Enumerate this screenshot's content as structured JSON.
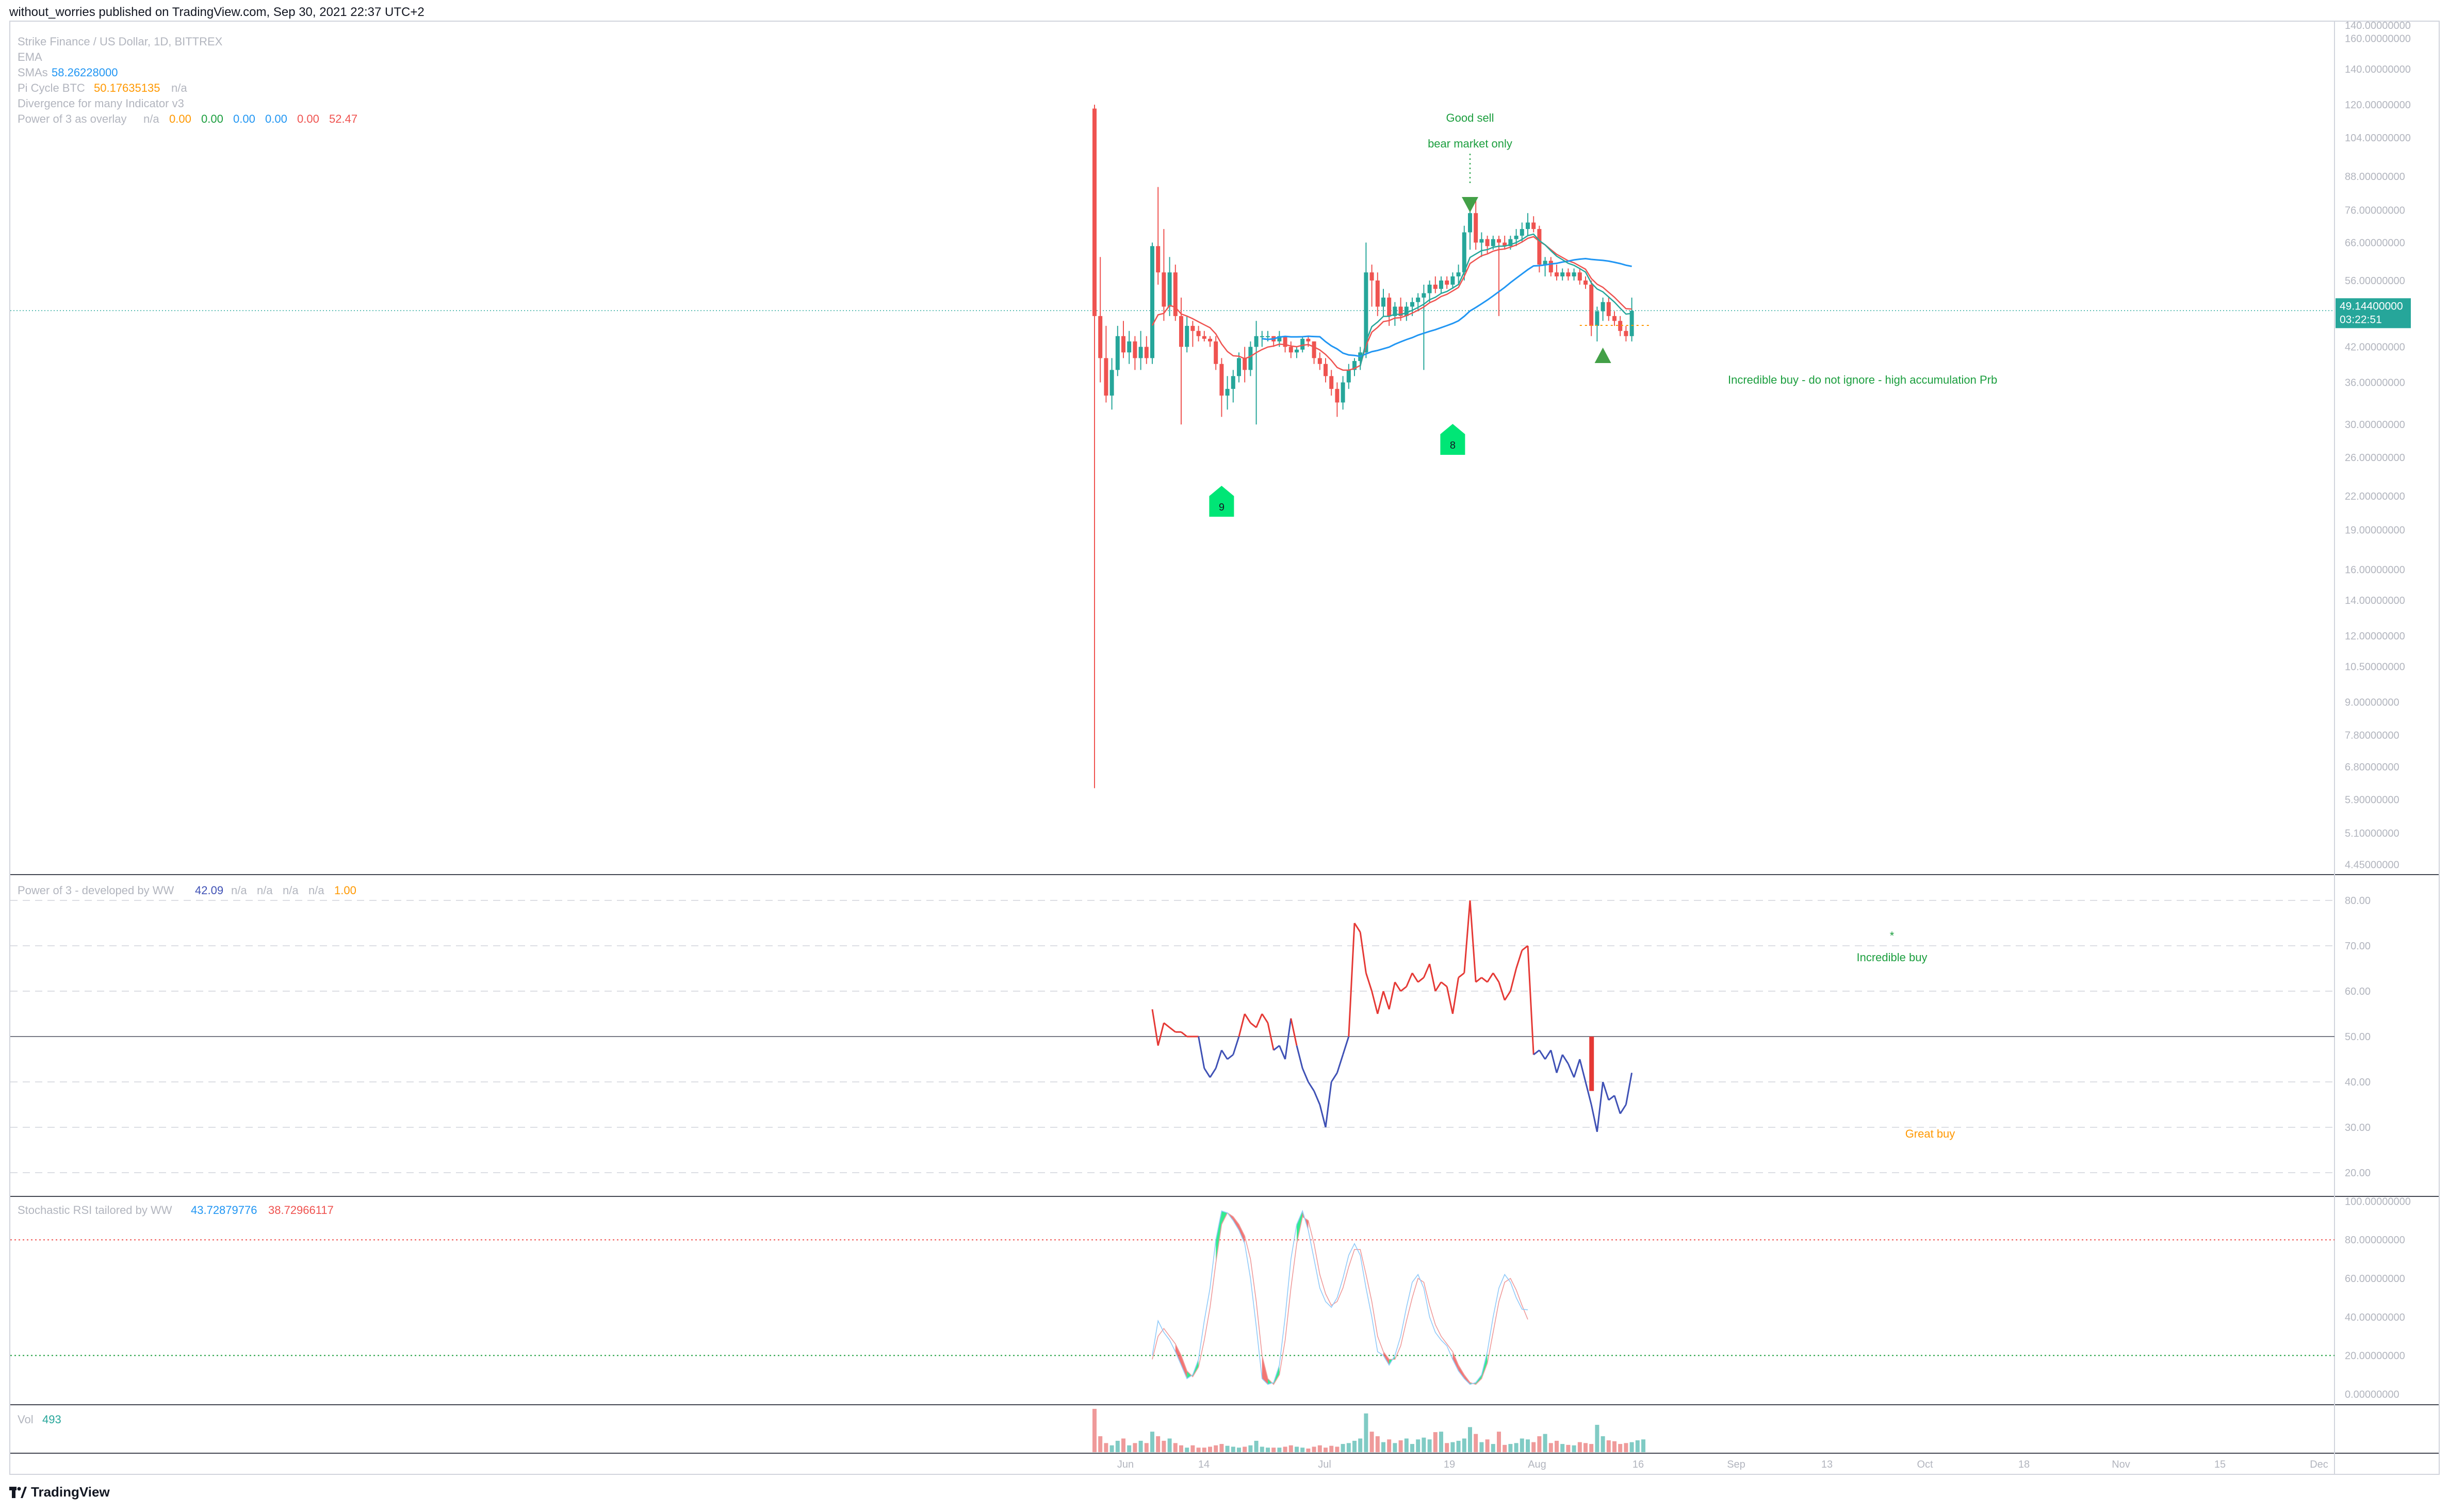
{
  "header": {
    "publisher": "without_worries published on TradingView.com, Sep 30, 2021 22:37 UTC+2"
  },
  "footer": {
    "brand": "TradingView"
  },
  "legend": {
    "symbol": "Strike Finance / US Dollar, 1D, BITTREX",
    "ema": "EMA",
    "smas_label": "SMAs",
    "smas_value": "58.26228000",
    "pi_label": "Pi Cycle BTC",
    "pi_value": "50.17635135",
    "pi_na": "n/a",
    "divergence": "Divergence for many Indicator v3",
    "pow_overlay_label": "Power of 3 as overlay",
    "pow_overlay_values": [
      "n/a",
      "0.00",
      "0.00",
      "0.00",
      "0.00",
      "0.00",
      "52.47"
    ]
  },
  "panes": {
    "power3": {
      "label": "Power of 3 - developed by WW",
      "values": [
        "42.09",
        "n/a",
        "n/a",
        "n/a",
        "n/a",
        "1.00"
      ]
    },
    "stoch": {
      "label": "Stochastic RSI tailored by WW",
      "k": "43.72879776",
      "d": "38.72966117"
    },
    "vol": {
      "label": "Vol",
      "value": "493"
    }
  },
  "price_axis": [
    "140.00000000",
    "160.00000000",
    "140.00000000",
    "120.00000000",
    "104.00000000",
    "88.00000000",
    "76.00000000",
    "66.00000000",
    "56.00000000",
    "42.00000000",
    "36.00000000",
    "30.00000000",
    "26.00000000",
    "22.00000000",
    "19.00000000",
    "16.00000000",
    "14.00000000",
    "12.00000000",
    "10.50000000",
    "9.00000000",
    "7.80000000",
    "6.80000000",
    "5.90000000",
    "5.10000000",
    "4.45000000"
  ],
  "last_price": {
    "value": "49.14400000",
    "countdown": "03:22:51"
  },
  "power3_axis": [
    "80.00",
    "70.00",
    "60.00",
    "50.00",
    "40.00",
    "30.00",
    "20.00"
  ],
  "stoch_axis": [
    "100.00000000",
    "80.00000000",
    "60.00000000",
    "40.00000000",
    "20.00000000",
    "0.00000000"
  ],
  "time_axis": [
    "Jun",
    "14",
    "Jul",
    "19",
    "Aug",
    "16",
    "Sep",
    "13",
    "Oct",
    "18",
    "Nov",
    "15",
    "Dec"
  ],
  "annotations": {
    "good_sell": "Good sell",
    "bear_market": "bear market only",
    "incredible_buy_main": "Incredible buy - do not ignore - high accumulation Prb",
    "marker_9": "9",
    "marker_8": "8",
    "incredible_buy_p3": "Incredible buy",
    "star": "*",
    "great_buy": "Great buy"
  },
  "colors": {
    "up": "#26a69a",
    "down": "#ef5350",
    "ema_red": "#ef5350",
    "ema_green": "#26a69a",
    "sma_blue": "#2196f3",
    "power_red": "#e53935",
    "power_blue": "#3f51b5",
    "stoch_k": "#2196f3",
    "stoch_d": "#ef5350",
    "annot_green": "#1b9e3e",
    "annot_orange": "#ff9800",
    "marker_green": "#00e676"
  },
  "chart_data": [
    {
      "type": "candlestick",
      "title": "Strike Finance / US Dollar, 1D, BITTREX",
      "y_scale": "log",
      "ylim": [
        4.3,
        172
      ],
      "x": [
        "Jun",
        "14",
        "Jul",
        "19",
        "Aug",
        "16",
        "Sep",
        "13",
        "Oct",
        "18",
        "Nov",
        "15",
        "Dec"
      ],
      "last_price": 49.144,
      "candles": [
        {
          "o": 118,
          "h": 120,
          "l": 6.2,
          "c": 48
        },
        {
          "o": 48,
          "h": 62,
          "l": 36,
          "c": 40
        },
        {
          "o": 40,
          "h": 46,
          "l": 33,
          "c": 34
        },
        {
          "o": 34,
          "h": 40,
          "l": 32,
          "c": 38
        },
        {
          "o": 38,
          "h": 46,
          "l": 37,
          "c": 44
        },
        {
          "o": 44,
          "h": 47,
          "l": 40,
          "c": 41
        },
        {
          "o": 41,
          "h": 45,
          "l": 39,
          "c": 43
        },
        {
          "o": 43,
          "h": 44,
          "l": 38,
          "c": 40
        },
        {
          "o": 40,
          "h": 45,
          "l": 38,
          "c": 42
        },
        {
          "o": 42,
          "h": 44,
          "l": 39,
          "c": 40
        },
        {
          "o": 40,
          "h": 66,
          "l": 39,
          "c": 65
        },
        {
          "o": 65,
          "h": 84,
          "l": 55,
          "c": 58
        },
        {
          "o": 58,
          "h": 70,
          "l": 47,
          "c": 50
        },
        {
          "o": 50,
          "h": 62,
          "l": 48,
          "c": 58
        },
        {
          "o": 58,
          "h": 60,
          "l": 47,
          "c": 48
        },
        {
          "o": 48,
          "h": 52,
          "l": 30,
          "c": 42
        },
        {
          "o": 42,
          "h": 48,
          "l": 41,
          "c": 46
        },
        {
          "o": 46,
          "h": 47,
          "l": 42,
          "c": 45
        },
        {
          "o": 45,
          "h": 46,
          "l": 43,
          "c": 44
        },
        {
          "o": 44,
          "h": 45,
          "l": 43,
          "c": 43.5
        },
        {
          "o": 43.5,
          "h": 44,
          "l": 42,
          "c": 43
        },
        {
          "o": 43,
          "h": 44,
          "l": 38,
          "c": 39
        },
        {
          "o": 39,
          "h": 40,
          "l": 31,
          "c": 34
        },
        {
          "o": 34,
          "h": 37,
          "l": 32,
          "c": 35
        },
        {
          "o": 35,
          "h": 38,
          "l": 33,
          "c": 37
        },
        {
          "o": 37,
          "h": 41,
          "l": 36,
          "c": 40
        },
        {
          "o": 40,
          "h": 42,
          "l": 36,
          "c": 38
        },
        {
          "o": 38,
          "h": 43,
          "l": 37,
          "c": 42
        },
        {
          "o": 42,
          "h": 47,
          "l": 30,
          "c": 44
        },
        {
          "o": 44,
          "h": 45,
          "l": 42,
          "c": 44
        },
        {
          "o": 44,
          "h": 45,
          "l": 43,
          "c": 44
        },
        {
          "o": 44,
          "h": 44,
          "l": 42,
          "c": 43
        },
        {
          "o": 43,
          "h": 45,
          "l": 42,
          "c": 44
        },
        {
          "o": 44,
          "h": 44,
          "l": 41,
          "c": 42
        },
        {
          "o": 42,
          "h": 43,
          "l": 40,
          "c": 41
        },
        {
          "o": 41,
          "h": 42,
          "l": 40,
          "c": 41.5
        },
        {
          "o": 41.5,
          "h": 44,
          "l": 41,
          "c": 43.5
        },
        {
          "o": 43.5,
          "h": 44,
          "l": 42,
          "c": 43
        },
        {
          "o": 43,
          "h": 43,
          "l": 39,
          "c": 40
        },
        {
          "o": 40,
          "h": 41,
          "l": 38,
          "c": 39
        },
        {
          "o": 39,
          "h": 40,
          "l": 36,
          "c": 37
        },
        {
          "o": 37,
          "h": 38,
          "l": 34,
          "c": 35
        },
        {
          "o": 35,
          "h": 36,
          "l": 31,
          "c": 33
        },
        {
          "o": 33,
          "h": 37,
          "l": 32,
          "c": 36
        },
        {
          "o": 36,
          "h": 39,
          "l": 35,
          "c": 38
        },
        {
          "o": 38,
          "h": 40,
          "l": 37,
          "c": 39.5
        },
        {
          "o": 39.5,
          "h": 42,
          "l": 38,
          "c": 41
        },
        {
          "o": 41,
          "h": 66,
          "l": 40,
          "c": 58
        },
        {
          "o": 58,
          "h": 60,
          "l": 50,
          "c": 56
        },
        {
          "o": 56,
          "h": 58,
          "l": 48,
          "c": 50
        },
        {
          "o": 50,
          "h": 54,
          "l": 48,
          "c": 52
        },
        {
          "o": 52,
          "h": 53,
          "l": 46,
          "c": 48
        },
        {
          "o": 48,
          "h": 51,
          "l": 46,
          "c": 50
        },
        {
          "o": 50,
          "h": 52,
          "l": 47,
          "c": 48
        },
        {
          "o": 48,
          "h": 51,
          "l": 47,
          "c": 50
        },
        {
          "o": 50,
          "h": 52,
          "l": 48,
          "c": 51
        },
        {
          "o": 51,
          "h": 53,
          "l": 49,
          "c": 52
        },
        {
          "o": 52,
          "h": 55,
          "l": 38,
          "c": 53
        },
        {
          "o": 53,
          "h": 56,
          "l": 51,
          "c": 55
        },
        {
          "o": 55,
          "h": 57,
          "l": 53,
          "c": 54
        },
        {
          "o": 54,
          "h": 57,
          "l": 53,
          "c": 56
        },
        {
          "o": 56,
          "h": 57,
          "l": 54,
          "c": 55
        },
        {
          "o": 55,
          "h": 58,
          "l": 54,
          "c": 57
        },
        {
          "o": 57,
          "h": 60,
          "l": 55,
          "c": 58
        },
        {
          "o": 58,
          "h": 71,
          "l": 56,
          "c": 69
        },
        {
          "o": 69,
          "h": 80,
          "l": 64,
          "c": 75
        },
        {
          "o": 75,
          "h": 80,
          "l": 64,
          "c": 66
        },
        {
          "o": 66,
          "h": 69,
          "l": 62,
          "c": 67
        },
        {
          "o": 67,
          "h": 68,
          "l": 63,
          "c": 65
        },
        {
          "o": 65,
          "h": 68,
          "l": 64,
          "c": 67
        },
        {
          "o": 67,
          "h": 68,
          "l": 48,
          "c": 66
        },
        {
          "o": 66,
          "h": 68,
          "l": 64,
          "c": 65
        },
        {
          "o": 65,
          "h": 68,
          "l": 64,
          "c": 67
        },
        {
          "o": 67,
          "h": 70,
          "l": 65,
          "c": 68
        },
        {
          "o": 68,
          "h": 72,
          "l": 66,
          "c": 70
        },
        {
          "o": 70,
          "h": 75,
          "l": 68,
          "c": 72
        },
        {
          "o": 72,
          "h": 74,
          "l": 69,
          "c": 70
        },
        {
          "o": 70,
          "h": 71,
          "l": 58,
          "c": 60
        },
        {
          "o": 60,
          "h": 62,
          "l": 57,
          "c": 61
        },
        {
          "o": 61,
          "h": 62,
          "l": 57,
          "c": 58
        },
        {
          "o": 58,
          "h": 60,
          "l": 56,
          "c": 57
        },
        {
          "o": 57,
          "h": 59,
          "l": 56,
          "c": 58
        },
        {
          "o": 58,
          "h": 59,
          "l": 56,
          "c": 57
        },
        {
          "o": 57,
          "h": 59,
          "l": 56,
          "c": 58
        },
        {
          "o": 58,
          "h": 59,
          "l": 55,
          "c": 56
        },
        {
          "o": 56,
          "h": 57,
          "l": 54,
          "c": 55
        },
        {
          "o": 55,
          "h": 56,
          "l": 44,
          "c": 46
        },
        {
          "o": 46,
          "h": 50,
          "l": 43,
          "c": 49
        },
        {
          "o": 49,
          "h": 52,
          "l": 47,
          "c": 51
        },
        {
          "o": 51,
          "h": 52,
          "l": 47,
          "c": 48
        },
        {
          "o": 48,
          "h": 49,
          "l": 46,
          "c": 47
        },
        {
          "o": 47,
          "h": 48,
          "l": 44,
          "c": 45
        },
        {
          "o": 45,
          "h": 46,
          "l": 43,
          "c": 44
        },
        {
          "o": 44,
          "h": 52,
          "l": 43,
          "c": 49.1
        }
      ],
      "ema_red_start": 10,
      "sma_blue_start": 29,
      "ema_green_start": 46,
      "annotation_good_sell_index": 65,
      "annotation_incredible_buy_index": 88,
      "marker_9_index": 22,
      "marker_8_index": 62
    },
    {
      "type": "line",
      "title": "Power of 3 - developed by WW",
      "ylim": [
        15,
        85
      ],
      "hlines": [
        80,
        70,
        50,
        30,
        20
      ],
      "series": [
        {
          "start_index": 10,
          "values": [
            56,
            48,
            53,
            52,
            51,
            51,
            50,
            50,
            50,
            43,
            41,
            43,
            47,
            45,
            46,
            50,
            55,
            53,
            52,
            55,
            53,
            47,
            48,
            45,
            54,
            48,
            43,
            40,
            38,
            35,
            30,
            40,
            42,
            46,
            50,
            75,
            73,
            64,
            60,
            55,
            60,
            56,
            62,
            60,
            61,
            64,
            62,
            63,
            66,
            60,
            62,
            61,
            55,
            63,
            64,
            80,
            62,
            63,
            62,
            64,
            62,
            58,
            60,
            65,
            69,
            70,
            46,
            47,
            45,
            47,
            42,
            46,
            44,
            41,
            45,
            40,
            35,
            29,
            40,
            36,
            37,
            33,
            35,
            42
          ]
        }
      ]
    },
    {
      "type": "line",
      "title": "Stochastic RSI tailored by WW",
      "ylim": [
        -5,
        102
      ],
      "hlines": [
        80,
        20
      ],
      "series": [
        {
          "name": "K",
          "start_index": 10,
          "values": [
            20,
            38,
            32,
            28,
            22,
            15,
            8,
            10,
            18,
            38,
            55,
            80,
            95,
            94,
            90,
            85,
            78,
            60,
            35,
            8,
            5,
            6,
            15,
            40,
            70,
            88,
            95,
            85,
            70,
            55,
            48,
            45,
            50,
            60,
            72,
            78,
            72,
            55,
            40,
            22,
            20,
            15,
            20,
            30,
            45,
            58,
            62,
            55,
            40,
            32,
            28,
            25,
            18,
            12,
            8,
            5,
            6,
            10,
            22,
            40,
            55,
            62,
            58,
            50,
            44,
            43.7
          ]
        },
        {
          "name": "D",
          "start_index": 10,
          "values": [
            18,
            30,
            34,
            30,
            26,
            20,
            12,
            9,
            14,
            28,
            45,
            68,
            88,
            94,
            92,
            88,
            82,
            70,
            48,
            20,
            8,
            5,
            10,
            28,
            55,
            78,
            92,
            90,
            78,
            62,
            52,
            46,
            48,
            55,
            66,
            75,
            75,
            62,
            48,
            30,
            22,
            18,
            18,
            25,
            38,
            50,
            60,
            58,
            46,
            36,
            30,
            26,
            22,
            15,
            10,
            6,
            5,
            8,
            16,
            32,
            48,
            58,
            60,
            54,
            46,
            38.7
          ]
        }
      ]
    },
    {
      "type": "bar",
      "title": "Vol",
      "values": [
        95,
        35,
        20,
        15,
        25,
        30,
        15,
        20,
        25,
        20,
        45,
        35,
        25,
        30,
        20,
        15,
        10,
        15,
        10,
        10,
        12,
        15,
        18,
        14,
        12,
        10,
        12,
        15,
        25,
        12,
        10,
        10,
        10,
        12,
        15,
        12,
        10,
        8,
        12,
        15,
        10,
        14,
        12,
        18,
        20,
        25,
        30,
        85,
        45,
        35,
        22,
        28,
        20,
        26,
        30,
        18,
        28,
        32,
        28,
        44,
        45,
        20,
        22,
        25,
        30,
        55,
        40,
        22,
        28,
        18,
        45,
        16,
        18,
        20,
        30,
        28,
        22,
        35,
        40,
        20,
        25,
        18,
        16,
        15,
        22,
        20,
        18,
        60,
        35,
        26,
        24,
        18,
        20,
        22,
        26,
        28
      ]
    }
  ]
}
